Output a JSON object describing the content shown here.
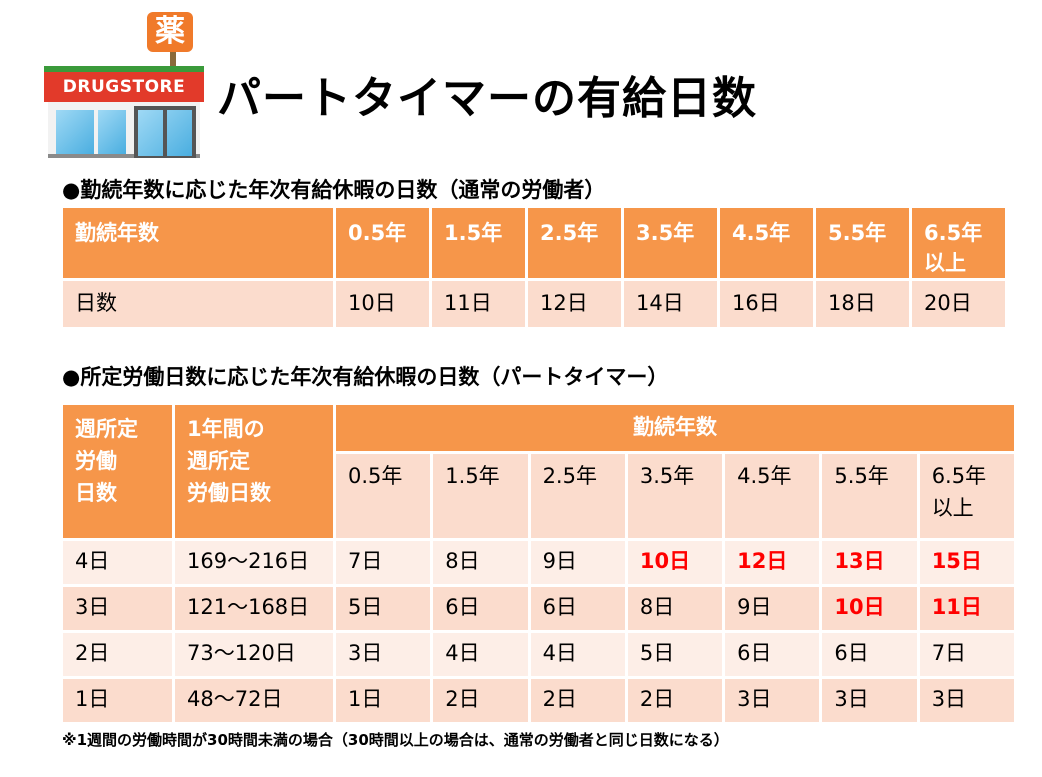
{
  "store_icon": {
    "badge": "薬",
    "sign": "DRUGSTORE"
  },
  "title": "パートタイマーの有給日数",
  "section1": {
    "heading": "●勤続年数に応じた年次有給休暇の日数（通常の労働者）",
    "header_label": "勤続年数",
    "years": [
      "0.5年",
      "1.5年",
      "2.5年",
      "3.5年",
      "4.5年",
      "5.5年",
      "6.5年\n以上"
    ],
    "row_label": "日数",
    "days": [
      "10日",
      "11日",
      "12日",
      "14日",
      "16日",
      "18日",
      "20日"
    ]
  },
  "section2": {
    "heading": "●所定労働日数に応じた年次有給休暇の日数（パートタイマー）",
    "col1_header": "週所定\n労働\n日数",
    "col2_header": "1年間の\n週所定\n労働日数",
    "group_header": "勤続年数",
    "years": [
      "0.5年",
      "1.5年",
      "2.5年",
      "3.5年",
      "4.5年",
      "5.5年",
      "6.5年\n以上"
    ],
    "rows": [
      {
        "week_days": "4日",
        "year_days": "169～216日",
        "days": [
          "7日",
          "8日",
          "9日",
          "10日",
          "12日",
          "13日",
          "15日"
        ],
        "highlight": [
          false,
          false,
          false,
          true,
          true,
          true,
          true
        ]
      },
      {
        "week_days": "3日",
        "year_days": "121～168日",
        "days": [
          "5日",
          "6日",
          "6日",
          "8日",
          "9日",
          "10日",
          "11日"
        ],
        "highlight": [
          false,
          false,
          false,
          false,
          false,
          true,
          true
        ]
      },
      {
        "week_days": "2日",
        "year_days": "73～120日",
        "days": [
          "3日",
          "4日",
          "4日",
          "5日",
          "6日",
          "6日",
          "7日"
        ],
        "highlight": [
          false,
          false,
          false,
          false,
          false,
          false,
          false
        ]
      },
      {
        "week_days": "1日",
        "year_days": "48～72日",
        "days": [
          "1日",
          "2日",
          "2日",
          "2日",
          "3日",
          "3日",
          "3日"
        ],
        "highlight": [
          false,
          false,
          false,
          false,
          false,
          false,
          false
        ]
      }
    ]
  },
  "footnote": "※1週間の労働時間が30時間未満の場合（30時間以上の場合は、通常の労働者と同じ日数になる）",
  "colors": {
    "header": "#f6964a",
    "row_dark": "#fbdccd",
    "row_light": "#fdeee7",
    "highlight": "#ff0000"
  }
}
